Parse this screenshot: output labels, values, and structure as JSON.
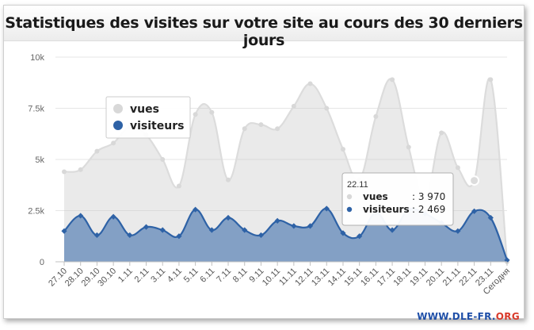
{
  "chart_data": {
    "type": "area",
    "title": "Statistiques des visites sur votre site au cours des 30 derniers jours",
    "categories": [
      "27.10",
      "28.10",
      "29.10",
      "30.10",
      "1.11",
      "2.11",
      "3.11",
      "4.11",
      "5.11",
      "6.11",
      "7.11",
      "8.11",
      "9.11",
      "10.11",
      "11.11",
      "12.11",
      "13.11",
      "14.11",
      "15.11",
      "16.11",
      "17.11",
      "18.11",
      "19.11",
      "20.11",
      "21.11",
      "22.11",
      "23.11",
      "Сегодня"
    ],
    "y_ticks": [
      "0",
      "2.5k",
      "5k",
      "7.5k",
      "10k"
    ],
    "ylim": [
      0,
      10000
    ],
    "series": [
      {
        "name": "vues",
        "color": "#d4d4d4",
        "values": [
          4400,
          4500,
          5400,
          5800,
          6600,
          6200,
          5000,
          3700,
          7200,
          7300,
          4000,
          6500,
          6700,
          6500,
          7600,
          8700,
          7500,
          5500,
          4000,
          7100,
          8900,
          5600,
          3000,
          6300,
          4600,
          3970,
          8900,
          0
        ]
      },
      {
        "name": "visiteurs",
        "color": "#2e62a6",
        "values": [
          1500,
          2250,
          1300,
          2200,
          1300,
          1700,
          1550,
          1250,
          2550,
          1550,
          2150,
          1550,
          1300,
          2000,
          1750,
          1750,
          2600,
          1400,
          1250,
          2400,
          1550,
          2550,
          2350,
          1900,
          1500,
          2469,
          2150,
          80
        ]
      }
    ],
    "legend_position": "top-left",
    "tooltip": {
      "label": "22.11",
      "rows": [
        {
          "name": "vues",
          "value": "3 970"
        },
        {
          "name": "visiteurs",
          "value": "2 469"
        }
      ]
    }
  },
  "watermark": {
    "main": "WWW.DLE-FR.",
    "org": "ORG"
  }
}
